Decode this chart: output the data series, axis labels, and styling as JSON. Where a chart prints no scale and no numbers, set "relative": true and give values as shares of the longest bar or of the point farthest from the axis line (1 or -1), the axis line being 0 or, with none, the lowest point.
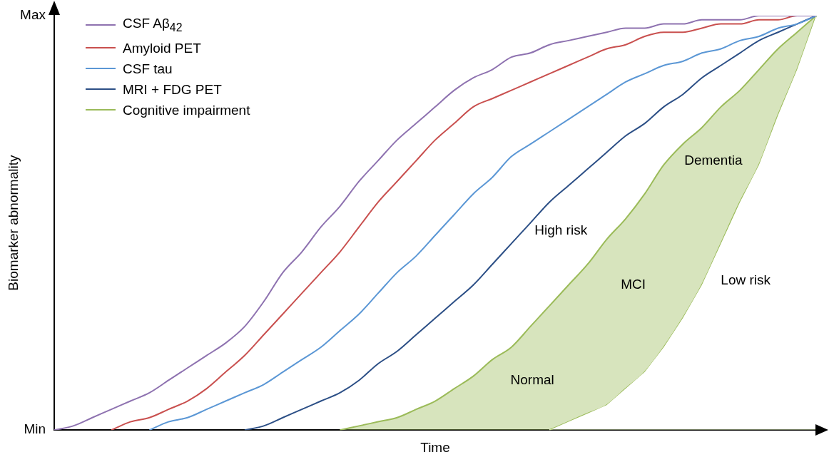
{
  "chart_data": {
    "type": "line",
    "xlabel": "Time",
    "ylabel": "Biomarker abnormality",
    "categories": [
      null,
      null,
      null,
      null,
      null,
      null,
      null,
      null,
      null,
      null,
      null,
      null,
      null,
      null,
      null,
      null,
      null,
      null,
      null,
      null,
      null,
      null,
      null,
      null,
      null,
      null,
      null,
      null,
      null,
      null,
      null,
      null,
      null,
      null,
      null,
      null,
      null,
      null,
      null,
      null,
      null
    ],
    "relative": true,
    "grid": false,
    "legend": "top left",
    "marker": "none",
    "line_style": "solid",
    "series": [
      {
        "name": "CSF Aβ$_{42}$",
        "color": "#8e72b0",
        "values": [
          0,
          0.01,
          0.03,
          0.05,
          0.07,
          0.09,
          0.12,
          0.15,
          0.18,
          0.21,
          0.25,
          0.31,
          0.38,
          0.43,
          0.49,
          0.54,
          0.6,
          0.65,
          0.7,
          0.74,
          0.78,
          0.82,
          0.85,
          0.87,
          0.9,
          0.91,
          0.93,
          0.94,
          0.95,
          0.96,
          0.97,
          0.97,
          0.98,
          0.98,
          0.99,
          0.99,
          0.99,
          1,
          1,
          1,
          1
        ]
      },
      {
        "name": "Amyloid PET",
        "color": "#c9504f",
        "values": [
          null,
          null,
          null,
          0,
          0.02,
          0.03,
          0.05,
          0.07,
          0.1,
          0.14,
          0.18,
          0.23,
          0.28,
          0.33,
          0.38,
          0.43,
          0.49,
          0.55,
          0.6,
          0.65,
          0.7,
          0.74,
          0.78,
          0.8,
          0.82,
          0.84,
          0.86,
          0.88,
          0.9,
          0.92,
          0.93,
          0.95,
          0.96,
          0.96,
          0.97,
          0.98,
          0.98,
          0.99,
          0.99,
          1,
          1
        ]
      },
      {
        "name": "CSF tau",
        "color": "#5b97d5",
        "values": [
          null,
          null,
          null,
          null,
          null,
          0,
          0.02,
          0.03,
          0.05,
          0.07,
          0.09,
          0.11,
          0.14,
          0.17,
          0.2,
          0.24,
          0.28,
          0.33,
          0.38,
          0.42,
          0.47,
          0.52,
          0.57,
          0.61,
          0.66,
          0.69,
          0.72,
          0.75,
          0.78,
          0.81,
          0.84,
          0.86,
          0.88,
          0.89,
          0.91,
          0.92,
          0.94,
          0.95,
          0.97,
          0.98,
          1
        ]
      },
      {
        "name": "MRI + FDG PET",
        "color": "#2c4f86",
        "values": [
          null,
          null,
          null,
          null,
          null,
          null,
          null,
          null,
          null,
          null,
          0,
          0.01,
          0.03,
          0.05,
          0.07,
          0.09,
          0.12,
          0.16,
          0.19,
          0.23,
          0.27,
          0.31,
          0.35,
          0.4,
          0.45,
          0.5,
          0.55,
          0.59,
          0.63,
          0.67,
          0.71,
          0.74,
          0.78,
          0.81,
          0.85,
          0.88,
          0.91,
          0.94,
          0.96,
          0.98,
          1
        ]
      },
      {
        "name": "Cognitive impairment",
        "type": "area",
        "color": "#9bbb59",
        "values": [
          null,
          null,
          null,
          null,
          null,
          null,
          null,
          null,
          null,
          null,
          null,
          null,
          null,
          null,
          null,
          0,
          0.01,
          0.02,
          0.03,
          0.05,
          0.07,
          0.1,
          0.13,
          0.17,
          0.2,
          0.25,
          0.3,
          0.35,
          0.4,
          0.46,
          0.51,
          0.57,
          0.64,
          0.69,
          0.73,
          0.78,
          0.82,
          0.87,
          0.92,
          0.96,
          1
        ]
      },
      {
        "type": "line",
        "color": "#9bbb59",
        "values": [
          null,
          null,
          null,
          null,
          null,
          null,
          null,
          null,
          null,
          null,
          null,
          null,
          null,
          null,
          null,
          null,
          null,
          null,
          null,
          null,
          null,
          null,
          null,
          null,
          null,
          null,
          0,
          0.02,
          0.04,
          0.06,
          0.1,
          0.14,
          0.2,
          0.27,
          0.35,
          0.45,
          0.55,
          0.64,
          0.76,
          0.87,
          1
        ]
      }
    ],
    "annotations": [
      "High risk",
      "Low risk",
      "Normal",
      "MCI",
      "Dementia",
      "Min",
      "Max"
    ]
  }
}
